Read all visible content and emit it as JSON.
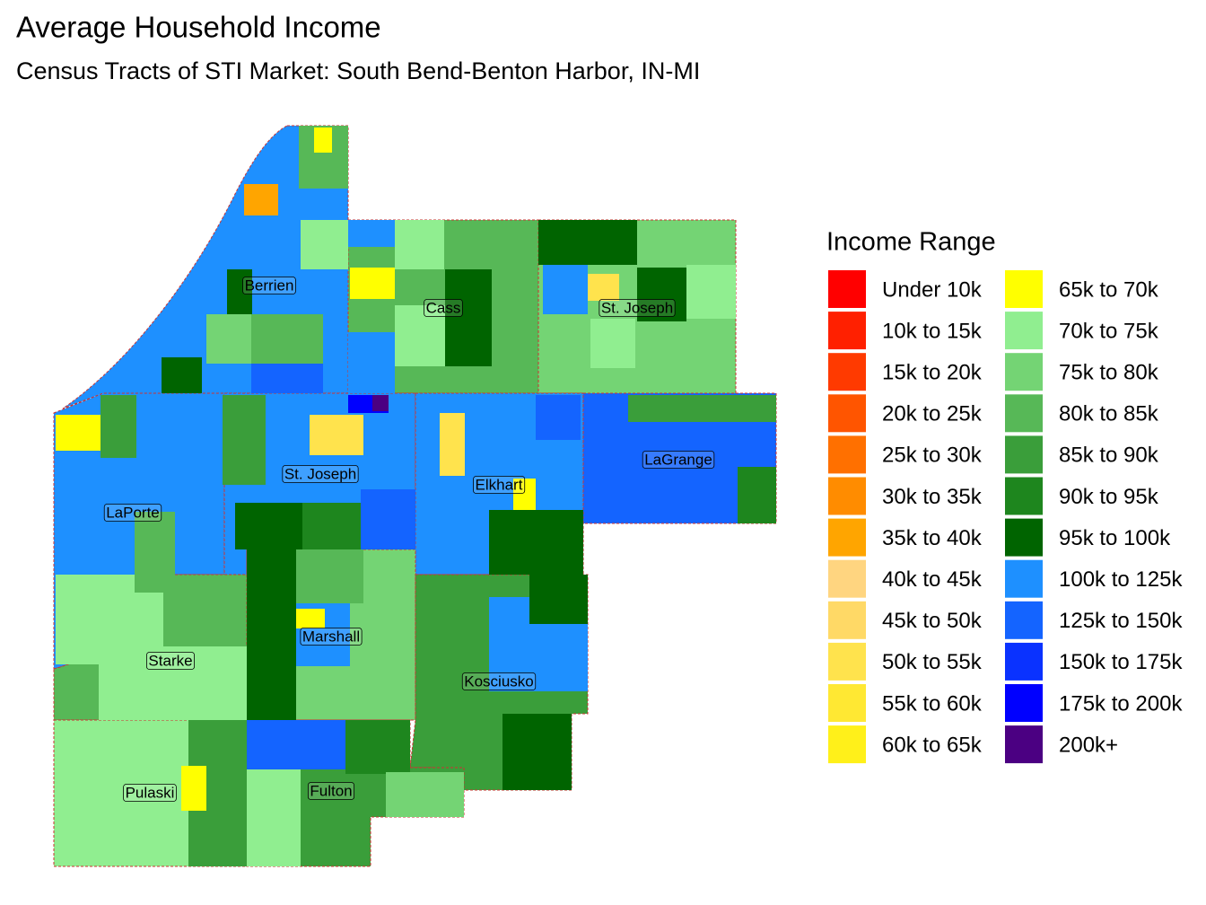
{
  "header": {
    "title": "Average Household Income",
    "subtitle": "Census Tracts of STI Market: South Bend-Benton Harbor, IN-MI"
  },
  "legend": {
    "title": "Income Range",
    "items": [
      {
        "label": "Under 10k",
        "color": "#FF0000"
      },
      {
        "label": "10k to 15k",
        "color": "#FF2000"
      },
      {
        "label": "15k to 20k",
        "color": "#FF3A00"
      },
      {
        "label": "20k to 25k",
        "color": "#FF5500"
      },
      {
        "label": "25k to 30k",
        "color": "#FF7000"
      },
      {
        "label": "30k to 35k",
        "color": "#FF8C00"
      },
      {
        "label": "35k to 40k",
        "color": "#FFA500"
      },
      {
        "label": "40k to 45k",
        "color": "#FFD580"
      },
      {
        "label": "45k to 50k",
        "color": "#FFD966"
      },
      {
        "label": "50k to 55k",
        "color": "#FFE34D"
      },
      {
        "label": "55k to 60k",
        "color": "#FFE833"
      },
      {
        "label": "60k to 65k",
        "color": "#FFF01A"
      },
      {
        "label": "65k to 70k",
        "color": "#FFFF00"
      },
      {
        "label": "70k to 75k",
        "color": "#90EE90"
      },
      {
        "label": "75k to 80k",
        "color": "#74D474"
      },
      {
        "label": "80k to 85k",
        "color": "#57B857"
      },
      {
        "label": "85k to 90k",
        "color": "#3A9E3A"
      },
      {
        "label": "90k to 95k",
        "color": "#1E861E"
      },
      {
        "label": "95k to 100k",
        "color": "#006400"
      },
      {
        "label": "100k to 125k",
        "color": "#1E90FF"
      },
      {
        "label": "125k to 150k",
        "color": "#1464FF"
      },
      {
        "label": "150k to 175k",
        "color": "#0A32FF"
      },
      {
        "label": "175k to 200k",
        "color": "#0000FF"
      },
      {
        "label": "200k+",
        "color": "#4B0082"
      }
    ]
  },
  "counties": [
    {
      "label": "Berrien"
    },
    {
      "label": "Cass"
    },
    {
      "label": "St. Joseph"
    },
    {
      "label": "St. Joseph"
    },
    {
      "label": "Elkhart"
    },
    {
      "label": "LaGrange"
    },
    {
      "label": "LaPorte"
    },
    {
      "label": "Starke"
    },
    {
      "label": "Marshall"
    },
    {
      "label": "Kosciusko"
    },
    {
      "label": "Pulaski"
    },
    {
      "label": "Fulton"
    }
  ]
}
